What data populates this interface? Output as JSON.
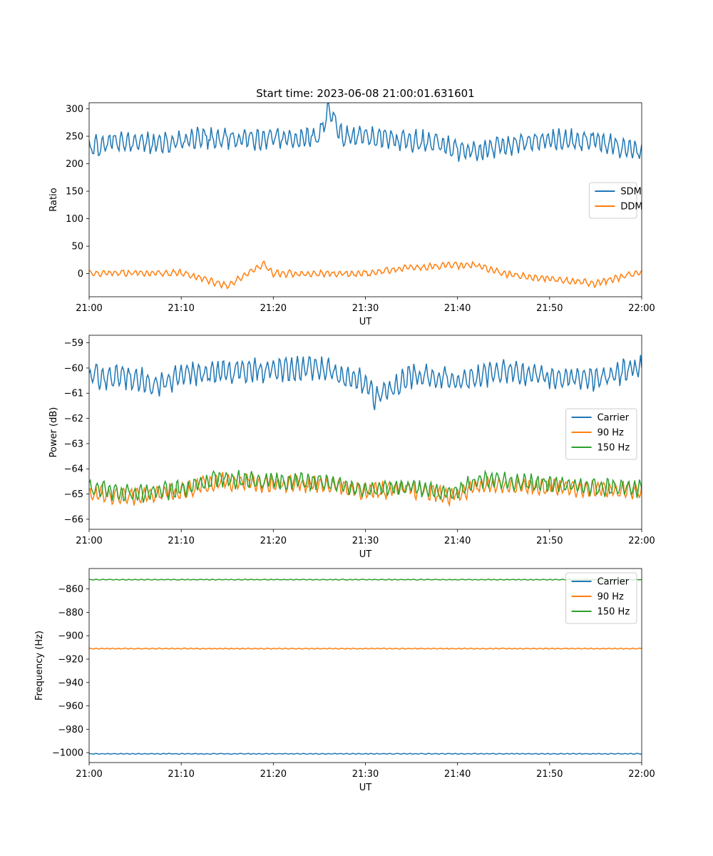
{
  "title": "Start time: 2023-06-08 21:00:01.631601",
  "colors": {
    "blue": "#1f77b4",
    "orange": "#ff7f0e",
    "green": "#2ca02c"
  },
  "chart_data": [
    {
      "type": "line",
      "xlabel": "UT",
      "ylabel": "Ratio",
      "xlim": [
        "21:00",
        "22:00"
      ],
      "ylim": [
        -42,
        311
      ],
      "x_ticks": [
        "21:00",
        "21:10",
        "21:20",
        "21:30",
        "21:40",
        "21:50",
        "22:00"
      ],
      "y_ticks": [
        0,
        50,
        100,
        150,
        200,
        250,
        300
      ],
      "legend": "center-right",
      "series": [
        {
          "name": "SDM",
          "color": "#1f77b4",
          "x_minutes": [
            0,
            2.5,
            5,
            7.5,
            10,
            12.5,
            15,
            17.5,
            20,
            22.5,
            25,
            26,
            27.5,
            30,
            32.5,
            35,
            37.5,
            40,
            42.5,
            45,
            47.5,
            50,
            52.5,
            55,
            57.5,
            60
          ],
          "values": [
            230,
            240,
            238,
            236,
            243,
            247,
            245,
            243,
            248,
            245,
            250,
            295,
            248,
            252,
            245,
            242,
            240,
            225,
            225,
            232,
            240,
            243,
            245,
            240,
            232,
            220
          ],
          "amplitude": 22
        },
        {
          "name": "DDM",
          "color": "#ff7f0e",
          "x_minutes": [
            0,
            10,
            15,
            19,
            20,
            30,
            35,
            42,
            45,
            55,
            60
          ],
          "values": [
            1,
            1,
            -22,
            18,
            0,
            0,
            12,
            16,
            0,
            -18,
            3
          ],
          "amplitude": 7
        }
      ]
    },
    {
      "type": "line",
      "xlabel": "UT",
      "ylabel": "Power (dB)",
      "xlim": [
        "21:00",
        "22:00"
      ],
      "ylim": [
        -66.4,
        -58.7
      ],
      "x_ticks": [
        "21:00",
        "21:10",
        "21:20",
        "21:30",
        "21:40",
        "21:50",
        "22:00"
      ],
      "y_ticks": [
        -59,
        -60,
        -61,
        -62,
        -63,
        -64,
        -65,
        -66
      ],
      "legend": "center-right",
      "series": [
        {
          "name": "Carrier",
          "color": "#1f77b4",
          "x_minutes": [
            0,
            5,
            7.5,
            10,
            15,
            20,
            25,
            30,
            31,
            35,
            40,
            45,
            50,
            55,
            60
          ],
          "values": [
            -60.3,
            -60.4,
            -60.7,
            -60.3,
            -60.1,
            -60.1,
            -60.0,
            -60.6,
            -61.2,
            -60.3,
            -60.5,
            -60.1,
            -60.4,
            -60.4,
            -60.0
          ],
          "amplitude": 0.55
        },
        {
          "name": "90 Hz",
          "color": "#ff7f0e",
          "x_minutes": [
            0,
            5,
            10,
            14,
            20,
            25,
            30,
            35,
            39,
            43,
            45,
            50,
            55,
            60
          ],
          "values": [
            -65.0,
            -65.1,
            -64.9,
            -64.5,
            -64.6,
            -64.6,
            -64.9,
            -64.8,
            -65.1,
            -64.6,
            -64.7,
            -64.7,
            -64.8,
            -64.9
          ],
          "amplitude": 0.4
        },
        {
          "name": "150 Hz",
          "color": "#2ca02c",
          "x_minutes": [
            0,
            5,
            10,
            14,
            20,
            25,
            30,
            35,
            39,
            43,
            45,
            50,
            55,
            60
          ],
          "values": [
            -64.8,
            -65.0,
            -64.8,
            -64.4,
            -64.5,
            -64.5,
            -64.8,
            -64.7,
            -65.0,
            -64.4,
            -64.5,
            -64.6,
            -64.7,
            -64.8
          ],
          "amplitude": 0.4
        }
      ]
    },
    {
      "type": "line",
      "xlabel": "UT",
      "ylabel": "Frequency (Hz)",
      "xlim": [
        "21:00",
        "22:00"
      ],
      "ylim": [
        -1008.5,
        -842.5
      ],
      "x_ticks": [
        "21:00",
        "21:10",
        "21:20",
        "21:30",
        "21:40",
        "21:50",
        "22:00"
      ],
      "y_ticks": [
        -860,
        -880,
        -900,
        -920,
        -940,
        -960,
        -980,
        -1000
      ],
      "legend": "top-right",
      "series": [
        {
          "name": "Carrier",
          "color": "#1f77b4",
          "x_minutes": [
            0,
            60
          ],
          "values": [
            -1001,
            -1001
          ],
          "amplitude": 0.4
        },
        {
          "name": "90 Hz",
          "color": "#ff7f0e",
          "x_minutes": [
            0,
            60
          ],
          "values": [
            -911,
            -911
          ],
          "amplitude": 0.5
        },
        {
          "name": "150 Hz",
          "color": "#2ca02c",
          "x_minutes": [
            0,
            60
          ],
          "values": [
            -852,
            -852
          ],
          "amplitude": 0.4
        }
      ]
    }
  ]
}
